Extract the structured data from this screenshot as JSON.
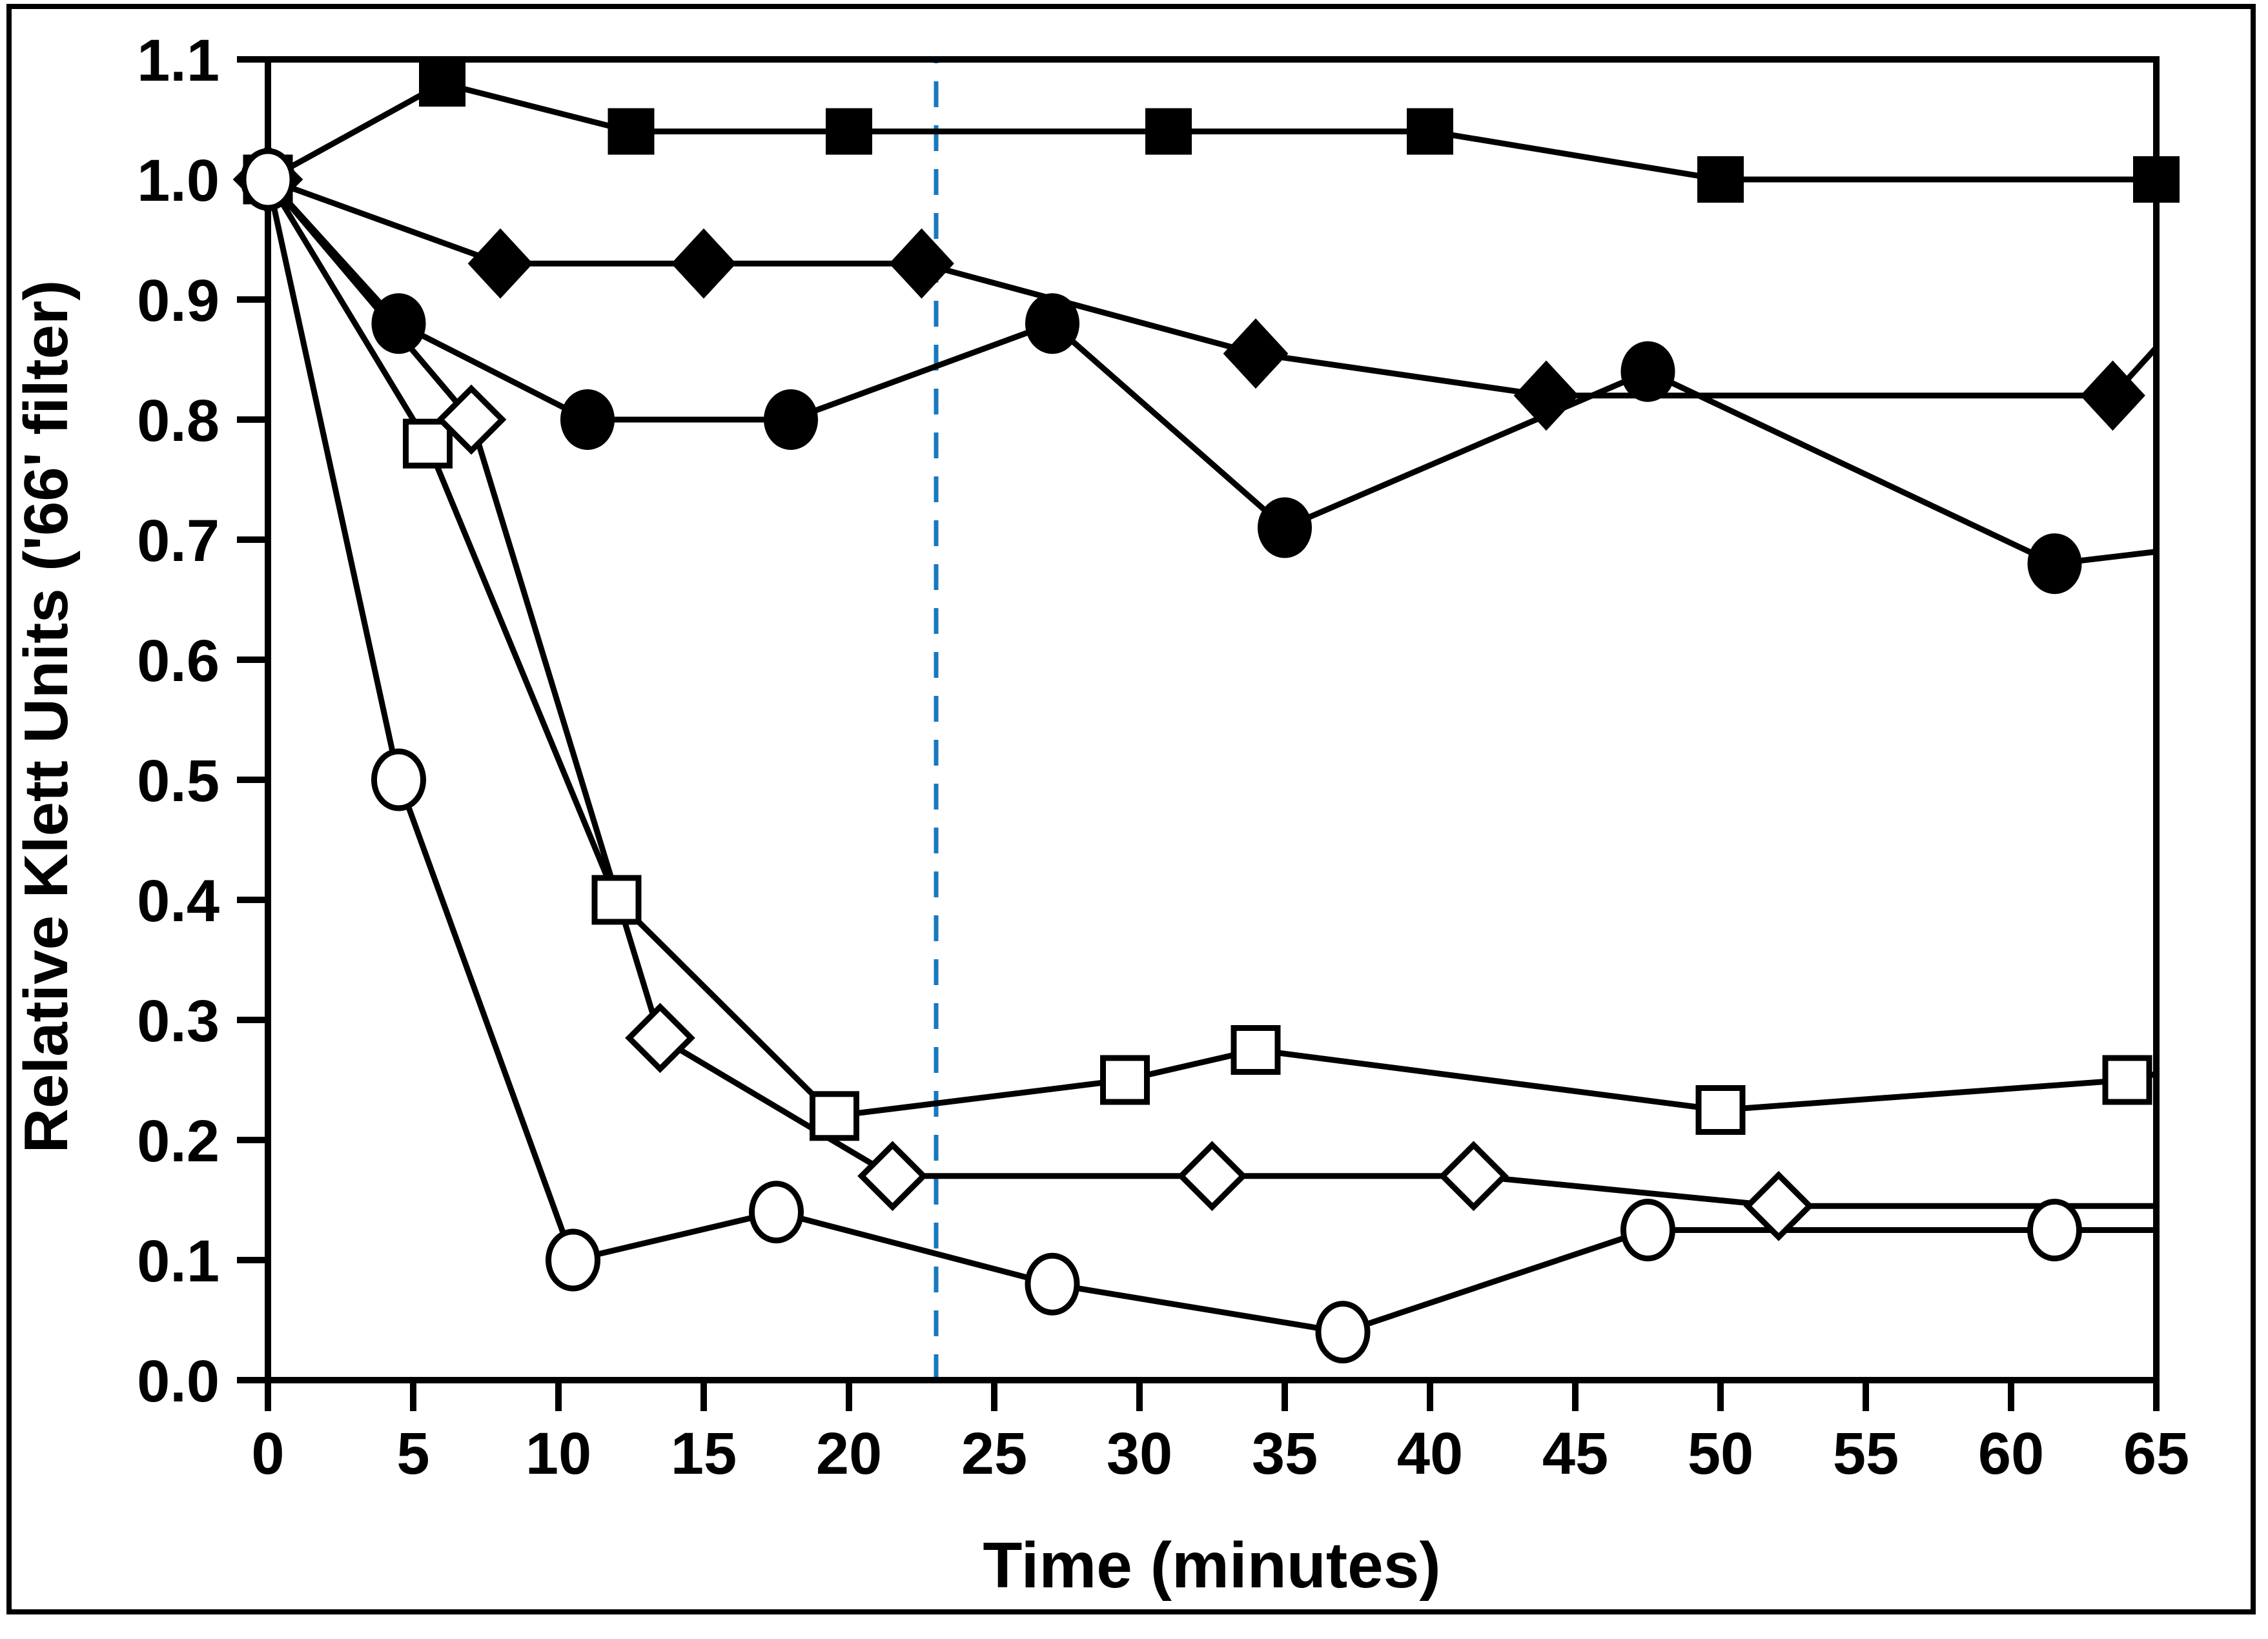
{
  "chart_data": {
    "type": "line",
    "title": "",
    "xlabel": "Time (minutes)",
    "ylabel": "Relative Klett Units ('66' filter)",
    "xlim": [
      0,
      65
    ],
    "ylim": [
      0.0,
      1.1
    ],
    "x_ticks": [
      0,
      5,
      10,
      15,
      20,
      25,
      30,
      35,
      40,
      45,
      50,
      55,
      60,
      65
    ],
    "y_ticks": [
      0.0,
      0.1,
      0.2,
      0.3,
      0.4,
      0.5,
      0.6,
      0.7,
      0.8,
      0.9,
      1.0,
      1.1
    ],
    "grid": false,
    "frame": true,
    "legend": "none",
    "background_color": "#ffffff",
    "series_color": "#000000",
    "annotation_line": {
      "orientation": "vertical",
      "x": 23,
      "style": "dashed",
      "color": "#1878be",
      "span": [
        0.0,
        1.1
      ]
    },
    "series": [
      {
        "name": "filled-square",
        "marker": "square",
        "variant": "filled",
        "points": [
          [
            0,
            1.0
          ],
          [
            6,
            1.08
          ],
          [
            12.5,
            1.04
          ],
          [
            20,
            1.04
          ],
          [
            31,
            1.04
          ],
          [
            40,
            1.04
          ],
          [
            50,
            1.0
          ],
          [
            65,
            1.0
          ]
        ]
      },
      {
        "name": "filled-diamond",
        "marker": "diamond",
        "variant": "filled",
        "points": [
          [
            0,
            1.0
          ],
          [
            8,
            0.93
          ],
          [
            15,
            0.93
          ],
          [
            22.5,
            0.93
          ],
          [
            34,
            0.855
          ],
          [
            44,
            0.82
          ],
          [
            63.5,
            0.82
          ],
          [
            65,
            0.86,
            1
          ]
        ]
      },
      {
        "name": "filled-circle",
        "marker": "circle",
        "variant": "filled",
        "points": [
          [
            0,
            1.0
          ],
          [
            4.5,
            0.88
          ],
          [
            11,
            0.8
          ],
          [
            18,
            0.8
          ],
          [
            27,
            0.88
          ],
          [
            35,
            0.71
          ],
          [
            47.5,
            0.84
          ],
          [
            61.5,
            0.68
          ],
          [
            65,
            0.69,
            1
          ]
        ]
      },
      {
        "name": "open-square",
        "marker": "square",
        "variant": "open",
        "points": [
          [
            0,
            1.0
          ],
          [
            5.5,
            0.78
          ],
          [
            12,
            0.4
          ],
          [
            19.5,
            0.22
          ],
          [
            29.5,
            0.25
          ],
          [
            34,
            0.275
          ],
          [
            50,
            0.225
          ],
          [
            64,
            0.25
          ],
          [
            65,
            0.255,
            1
          ]
        ]
      },
      {
        "name": "open-diamond",
        "marker": "diamond",
        "variant": "open",
        "points": [
          [
            0,
            1.0
          ],
          [
            7,
            0.8
          ],
          [
            13.5,
            0.285
          ],
          [
            21.5,
            0.17
          ],
          [
            32.5,
            0.17
          ],
          [
            41.5,
            0.17
          ],
          [
            52,
            0.145
          ],
          [
            65,
            0.145,
            1
          ]
        ]
      },
      {
        "name": "open-circle",
        "marker": "circle",
        "variant": "open",
        "points": [
          [
            0,
            1.0
          ],
          [
            4.5,
            0.5
          ],
          [
            10.5,
            0.1
          ],
          [
            17.5,
            0.14
          ],
          [
            27,
            0.08
          ],
          [
            37,
            0.04
          ],
          [
            47.5,
            0.125
          ],
          [
            61.5,
            0.125
          ],
          [
            65,
            0.125,
            1
          ]
        ]
      }
    ]
  }
}
